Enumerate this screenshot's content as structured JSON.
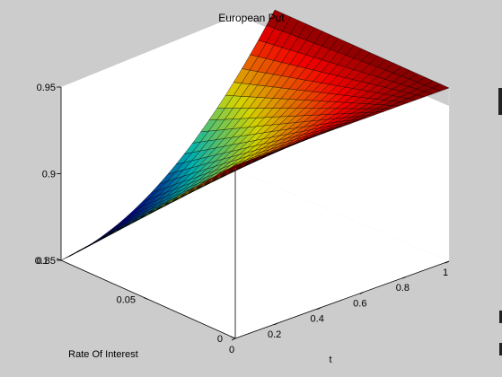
{
  "chart_data": {
    "type": "surface",
    "title": "European Put",
    "xlabel": "t",
    "ylabel": "Rate Of Interest",
    "zlabel": "",
    "xlim": [
      0,
      1
    ],
    "ylim": [
      0,
      0.1
    ],
    "zlim": [
      0.85,
      0.95
    ],
    "x_ticks": [
      "0",
      "0.2",
      "0.4",
      "0.6",
      "0.8",
      "1"
    ],
    "y_ticks": [
      "0",
      "0.05",
      "0.1"
    ],
    "z_ticks": [
      "0.85",
      "0.9",
      "0.95"
    ],
    "grid": true,
    "colormap": "jet",
    "surface_corners": [
      {
        "t": 0,
        "r": 0,
        "value": 0.95
      },
      {
        "t": 1,
        "r": 0,
        "value": 0.95
      },
      {
        "t": 0,
        "r": 0.1,
        "value": 0.85
      },
      {
        "t": 1,
        "r": 0.1,
        "value": 0.95
      }
    ]
  },
  "colors": {
    "figure_background": "#cccccc",
    "axes_background": "#ffffff",
    "gridline": "#ffffff"
  }
}
